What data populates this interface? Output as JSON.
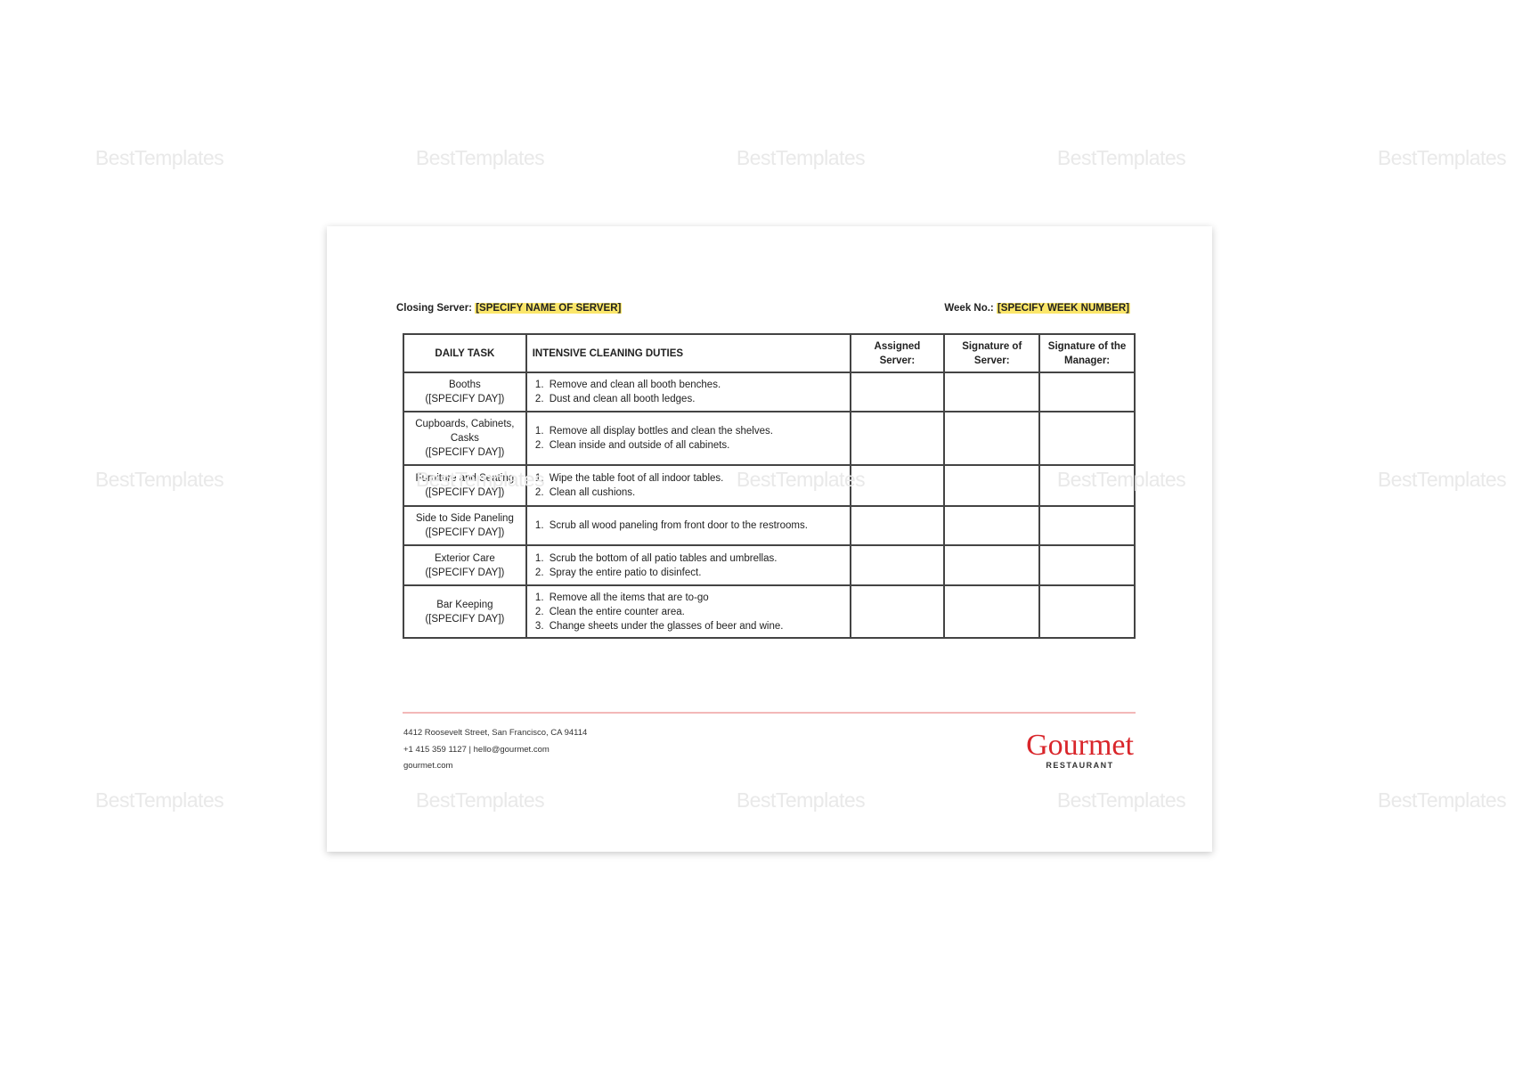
{
  "watermark": "BestTemplates",
  "header": {
    "closing_label": "Closing Server:",
    "closing_value": "[SPECIFY NAME OF SERVER]",
    "week_label": "Week No.:",
    "week_value": "[SPECIFY WEEK NUMBER]"
  },
  "table": {
    "columns": [
      "DAILY TASK",
      "INTENSIVE CLEANING DUTIES",
      "Assigned Server:",
      "Signature of Server:",
      "Signature of the Manager:"
    ],
    "rows": [
      {
        "task": "Booths",
        "day": "([SPECIFY DAY])",
        "duties": [
          "Remove and clean all booth benches.",
          "Dust and clean all booth ledges."
        ]
      },
      {
        "task": "Cupboards, Cabinets, Casks",
        "day": "([SPECIFY DAY])",
        "duties": [
          "Remove all display bottles and clean the shelves.",
          "Clean inside and outside of all cabinets."
        ]
      },
      {
        "task": "Furniture and Seating",
        "day": "([SPECIFY DAY])",
        "duties": [
          "Wipe the table foot of all indoor tables.",
          "Clean all cushions."
        ]
      },
      {
        "task": "Side to Side Paneling",
        "day": "([SPECIFY DAY])",
        "duties": [
          "Scrub all wood paneling from front door to the restrooms."
        ]
      },
      {
        "task": "Exterior Care",
        "day": "([SPECIFY DAY])",
        "duties": [
          "Scrub the bottom of all patio tables and umbrellas.",
          "Spray the entire patio to disinfect."
        ]
      },
      {
        "task": "Bar Keeping",
        "day": "([SPECIFY DAY])",
        "duties": [
          "Remove all the items that are to-go",
          "Clean the entire counter area.",
          "Change sheets under the glasses of beer and wine."
        ]
      }
    ]
  },
  "footer": {
    "address": "4412 Roosevelt Street, San Francisco, CA 94114",
    "contact": "+1 415 359 1127 | hello@gourmet.com",
    "website": "gourmet.com",
    "logo_name": "Gourmet",
    "logo_sub": "RESTAURANT"
  },
  "colors": {
    "highlight": "#fbe66a",
    "brand": "#d9262b",
    "rule": "#f3b8b8"
  }
}
